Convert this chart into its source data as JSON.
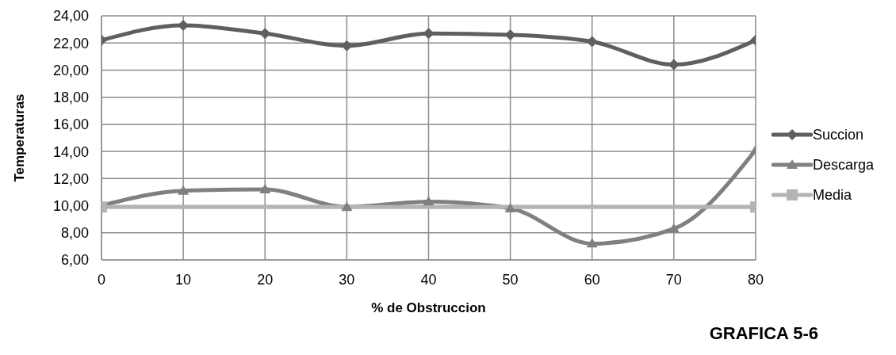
{
  "chart_data": {
    "type": "line",
    "xlabel": "% de Obstruccion",
    "ylabel": "Temperaturas",
    "annotations": [
      "GRAFICA 5-6"
    ],
    "x": [
      0,
      10,
      20,
      30,
      40,
      50,
      60,
      70,
      80
    ],
    "xlim": [
      0,
      80
    ],
    "xticks": [
      0,
      10,
      20,
      30,
      40,
      50,
      60,
      70,
      80
    ],
    "ylim": [
      6,
      24
    ],
    "yticks": [
      {
        "value": 6,
        "label": "6,00"
      },
      {
        "value": 8,
        "label": "8,00"
      },
      {
        "value": 10,
        "label": "10,00"
      },
      {
        "value": 12,
        "label": "12,00"
      },
      {
        "value": 14,
        "label": "14,00"
      },
      {
        "value": 16,
        "label": "16,00"
      },
      {
        "value": 18,
        "label": "18,00"
      },
      {
        "value": 20,
        "label": "20,00"
      },
      {
        "value": 22,
        "label": "22,00"
      },
      {
        "value": 24,
        "label": "24,00"
      }
    ],
    "grid": true,
    "legend": "right",
    "series": [
      {
        "name": "Succion",
        "color": "#5f5f5f",
        "marker": "diamond",
        "values": [
          22.2,
          23.3,
          22.7,
          21.8,
          22.7,
          22.6,
          22.1,
          20.4,
          22.2
        ]
      },
      {
        "name": "Descarga",
        "color": "#808080",
        "marker": "triangle",
        "values": [
          10.0,
          11.1,
          11.2,
          9.9,
          10.3,
          9.8,
          7.2,
          8.3,
          14.1
        ]
      },
      {
        "name": "Media",
        "color": "#b4b4b4",
        "marker": "square",
        "x": [
          0,
          80
        ],
        "values": [
          9.9,
          9.9
        ]
      }
    ]
  }
}
